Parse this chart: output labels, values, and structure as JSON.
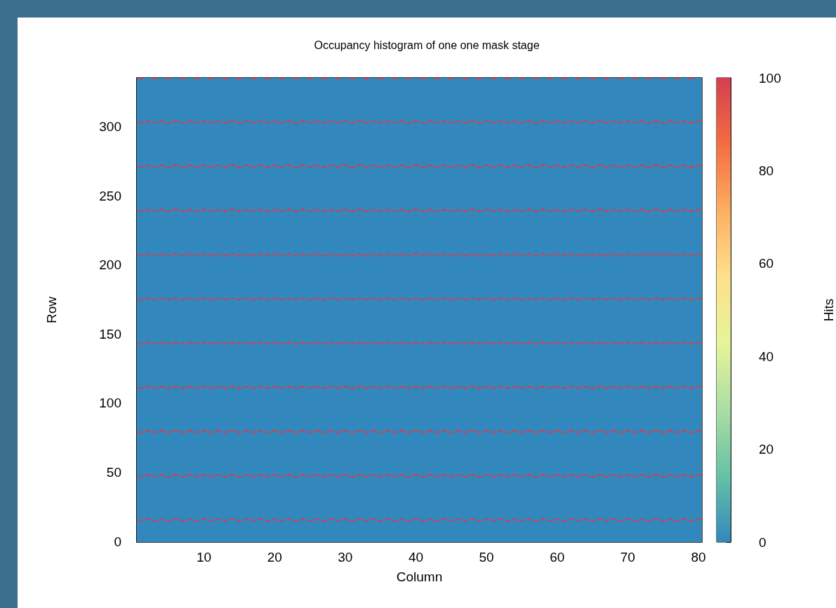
{
  "chart_data": {
    "type": "scatter",
    "title": "Occupancy histogram of one one mask stage",
    "xlabel": "Column",
    "ylabel": "Row",
    "clabel": "Hits",
    "marker": "diamond",
    "xlim": [
      0.5,
      80.5
    ],
    "xticks": [
      10,
      20,
      30,
      40,
      50,
      60,
      70,
      80
    ],
    "ylim": [
      -0.5,
      335.5
    ],
    "yticks": [
      0,
      50,
      100,
      150,
      200,
      250,
      300
    ],
    "clim": [
      0,
      100
    ],
    "cticks": [
      0,
      20,
      40,
      60,
      80,
      100
    ],
    "bands": [
      {
        "axis": "y",
        "from": -0.5,
        "to": 335.5,
        "color": "#3288bd"
      }
    ],
    "series": [
      {
        "x": [
          1,
          2,
          3,
          4,
          5,
          6,
          7,
          8,
          9,
          10,
          11,
          12,
          13,
          14,
          15,
          16,
          17,
          18,
          19,
          20,
          21,
          22,
          23,
          24,
          25,
          26,
          27,
          28,
          29,
          30,
          31,
          32,
          33,
          34,
          35,
          36,
          37,
          38,
          39,
          40,
          41,
          42,
          43,
          44,
          45,
          46,
          47,
          48,
          49,
          50,
          51,
          52,
          53,
          54,
          55,
          56,
          57,
          58,
          59,
          60,
          61,
          62,
          63,
          64,
          65,
          66,
          67,
          68,
          69,
          70,
          71,
          72,
          73,
          74,
          75,
          76,
          77,
          78,
          79,
          80
        ],
        "values": [
          15,
          16,
          15,
          16,
          15,
          16,
          15,
          16,
          15,
          16,
          15,
          16,
          15,
          16,
          15,
          16,
          15,
          16,
          15,
          16,
          15,
          16,
          15,
          16,
          15,
          16,
          15,
          16,
          15,
          16,
          15,
          16,
          15,
          16,
          15,
          16,
          15,
          16,
          15,
          16,
          15,
          16,
          15,
          16,
          15,
          16,
          15,
          16,
          15,
          16,
          15,
          16,
          15,
          16,
          15,
          16,
          15,
          16,
          15,
          16,
          15,
          16,
          15,
          16,
          15,
          16,
          15,
          16,
          15,
          16,
          15,
          16,
          15,
          16,
          15,
          16,
          15,
          16,
          15,
          16
        ],
        "cvalues": [
          100,
          100,
          100,
          100,
          100,
          100,
          100,
          100,
          100,
          100,
          100,
          100,
          100,
          100,
          100,
          100,
          100,
          100,
          100,
          100,
          100,
          100,
          100,
          100,
          100,
          100,
          100,
          100,
          100,
          100,
          100,
          100,
          100,
          100,
          100,
          100,
          100,
          100,
          100,
          100,
          100,
          100,
          100,
          100,
          100,
          100,
          100,
          100,
          100,
          100,
          100,
          100,
          100,
          100,
          100,
          100,
          100,
          100,
          100,
          100,
          100,
          100,
          100,
          100,
          100,
          100,
          100,
          100,
          100,
          100,
          100,
          100,
          100,
          100,
          100,
          100,
          100,
          100,
          100,
          100
        ]
      },
      {
        "x": [
          1,
          2,
          3,
          4,
          5,
          6,
          7,
          8,
          9,
          10,
          11,
          12,
          13,
          14,
          15,
          16,
          17,
          18,
          19,
          20,
          21,
          22,
          23,
          24,
          25,
          26,
          27,
          28,
          29,
          30,
          31,
          32,
          33,
          34,
          35,
          36,
          37,
          38,
          39,
          40,
          41,
          42,
          43,
          44,
          45,
          46,
          47,
          48,
          49,
          50,
          51,
          52,
          53,
          54,
          55,
          56,
          57,
          58,
          59,
          60,
          61,
          62,
          63,
          64,
          65,
          66,
          67,
          68,
          69,
          70,
          71,
          72,
          73,
          74,
          75,
          76,
          77,
          78,
          79,
          80
        ],
        "values": [
          47,
          48,
          47,
          48,
          47,
          48,
          47,
          48,
          47,
          48,
          47,
          48,
          47,
          48,
          47,
          48,
          47,
          48,
          47,
          48,
          47,
          48,
          47,
          48,
          47,
          48,
          47,
          48,
          47,
          48,
          47,
          48,
          47,
          48,
          47,
          48,
          47,
          48,
          47,
          48,
          47,
          48,
          47,
          48,
          47,
          48,
          47,
          48,
          47,
          48,
          47,
          48,
          47,
          48,
          47,
          48,
          47,
          48,
          47,
          48,
          47,
          48,
          47,
          48,
          47,
          48,
          47,
          48,
          47,
          48,
          47,
          48,
          47,
          48,
          47,
          48,
          47,
          48,
          47,
          48
        ],
        "cvalues": [
          100,
          100,
          100,
          100,
          100,
          100,
          100,
          100,
          100,
          100,
          100,
          100,
          100,
          100,
          100,
          100,
          100,
          100,
          100,
          100,
          100,
          100,
          100,
          100,
          100,
          100,
          100,
          100,
          100,
          100,
          100,
          100,
          100,
          100,
          100,
          100,
          100,
          100,
          100,
          100,
          100,
          100,
          100,
          100,
          100,
          100,
          100,
          100,
          100,
          100,
          100,
          100,
          100,
          100,
          100,
          100,
          100,
          100,
          100,
          100,
          100,
          100,
          100,
          100,
          100,
          100,
          100,
          100,
          100,
          100,
          100,
          100,
          100,
          100,
          100,
          100,
          100,
          100,
          100,
          100
        ]
      },
      {
        "x": [
          1,
          2,
          3,
          4,
          5,
          6,
          7,
          8,
          9,
          10,
          11,
          12,
          13,
          14,
          15,
          16,
          17,
          18,
          19,
          20,
          21,
          22,
          23,
          24,
          25,
          26,
          27,
          28,
          29,
          30,
          31,
          32,
          33,
          34,
          35,
          36,
          37,
          38,
          39,
          40,
          41,
          42,
          43,
          44,
          45,
          46,
          47,
          48,
          49,
          50,
          51,
          52,
          53,
          54,
          55,
          56,
          57,
          58,
          59,
          60,
          61,
          62,
          63,
          64,
          65,
          66,
          67,
          68,
          69,
          70,
          71,
          72,
          73,
          74,
          75,
          76,
          77,
          78,
          79,
          80
        ],
        "values": [
          79,
          80,
          79,
          80,
          79,
          80,
          79,
          80,
          79,
          80,
          79,
          80,
          79,
          80,
          79,
          80,
          79,
          80,
          79,
          80,
          79,
          80,
          79,
          80,
          79,
          80,
          79,
          80,
          79,
          80,
          79,
          80,
          79,
          80,
          79,
          80,
          79,
          80,
          79,
          80,
          79,
          80,
          79,
          80,
          79,
          80,
          79,
          80,
          79,
          80,
          79,
          80,
          79,
          80,
          79,
          80,
          79,
          80,
          79,
          80,
          79,
          80,
          79,
          80,
          79,
          80,
          79,
          80,
          79,
          80,
          79,
          80,
          79,
          80,
          79,
          80,
          79,
          80,
          79,
          80
        ],
        "cvalues": [
          100,
          100,
          100,
          100,
          100,
          100,
          100,
          100,
          100,
          100,
          100,
          100,
          100,
          100,
          100,
          100,
          100,
          100,
          100,
          100,
          100,
          100,
          100,
          100,
          100,
          100,
          100,
          100,
          100,
          100,
          100,
          100,
          100,
          100,
          100,
          100,
          100,
          100,
          100,
          100,
          100,
          100,
          100,
          100,
          100,
          100,
          100,
          100,
          100,
          100,
          100,
          100,
          100,
          100,
          100,
          100,
          100,
          100,
          100,
          100,
          100,
          100,
          100,
          100,
          100,
          100,
          100,
          100,
          100,
          100,
          100,
          100,
          100,
          100,
          100,
          100,
          100,
          100,
          100,
          100
        ]
      },
      {
        "x": [
          1,
          2,
          3,
          4,
          5,
          6,
          7,
          8,
          9,
          10,
          11,
          12,
          13,
          14,
          15,
          16,
          17,
          18,
          19,
          20,
          21,
          22,
          23,
          24,
          25,
          26,
          27,
          28,
          29,
          30,
          31,
          32,
          33,
          34,
          35,
          36,
          37,
          38,
          39,
          40,
          41,
          42,
          43,
          44,
          45,
          46,
          47,
          48,
          49,
          50,
          51,
          52,
          53,
          54,
          55,
          56,
          57,
          58,
          59,
          60,
          61,
          62,
          63,
          64,
          65,
          66,
          67,
          68,
          69,
          70,
          71,
          72,
          73,
          74,
          75,
          76,
          77,
          78,
          79,
          80
        ],
        "values": [
          111,
          112,
          111,
          112,
          111,
          112,
          111,
          112,
          111,
          112,
          111,
          112,
          111,
          112,
          111,
          112,
          111,
          112,
          111,
          112,
          111,
          112,
          111,
          112,
          111,
          112,
          111,
          112,
          111,
          112,
          111,
          112,
          111,
          112,
          111,
          112,
          111,
          112,
          111,
          112,
          111,
          112,
          111,
          112,
          111,
          112,
          111,
          112,
          111,
          112,
          111,
          112,
          111,
          112,
          111,
          112,
          111,
          112,
          111,
          112,
          111,
          112,
          111,
          112,
          111,
          112,
          111,
          112,
          111,
          112,
          111,
          112,
          111,
          112,
          111,
          112,
          111,
          112,
          111,
          112
        ],
        "cvalues": [
          100,
          100,
          100,
          100,
          100,
          100,
          100,
          100,
          100,
          100,
          100,
          100,
          100,
          100,
          100,
          100,
          100,
          100,
          100,
          100,
          100,
          100,
          100,
          100,
          100,
          100,
          100,
          100,
          100,
          100,
          100,
          100,
          100,
          100,
          100,
          100,
          100,
          100,
          100,
          100,
          100,
          100,
          100,
          100,
          100,
          100,
          100,
          100,
          100,
          100,
          100,
          100,
          100,
          100,
          100,
          100,
          100,
          100,
          100,
          100,
          100,
          100,
          100,
          100,
          100,
          100,
          100,
          100,
          100,
          100,
          100,
          100,
          100,
          100,
          100,
          100,
          100,
          100,
          100,
          100
        ]
      },
      {
        "x": [
          1,
          2,
          3,
          4,
          5,
          6,
          7,
          8,
          9,
          10,
          11,
          12,
          13,
          14,
          15,
          16,
          17,
          18,
          19,
          20,
          21,
          22,
          23,
          24,
          25,
          26,
          27,
          28,
          29,
          30,
          31,
          32,
          33,
          34,
          35,
          36,
          37,
          38,
          39,
          40,
          41,
          42,
          43,
          44,
          45,
          46,
          47,
          48,
          49,
          50,
          51,
          52,
          53,
          54,
          55,
          56,
          57,
          58,
          59,
          60,
          61,
          62,
          63,
          64,
          65,
          66,
          67,
          68,
          69,
          70,
          71,
          72,
          73,
          74,
          75,
          76,
          77,
          78,
          79,
          80
        ],
        "values": [
          143,
          144,
          143,
          144,
          143,
          144,
          143,
          144,
          143,
          144,
          143,
          144,
          143,
          144,
          143,
          144,
          143,
          144,
          143,
          144,
          143,
          144,
          143,
          144,
          143,
          144,
          143,
          144,
          143,
          144,
          143,
          144,
          143,
          144,
          143,
          144,
          143,
          144,
          143,
          144,
          143,
          144,
          143,
          144,
          143,
          144,
          143,
          144,
          143,
          144,
          143,
          144,
          143,
          144,
          143,
          144,
          143,
          144,
          143,
          144,
          143,
          144,
          143,
          144,
          143,
          144,
          143,
          144,
          143,
          144,
          143,
          144,
          143,
          144,
          143,
          144,
          143,
          144,
          143,
          144
        ],
        "cvalues": [
          100,
          100,
          100,
          100,
          100,
          100,
          100,
          100,
          100,
          100,
          100,
          100,
          100,
          100,
          100,
          100,
          100,
          100,
          100,
          100,
          100,
          100,
          100,
          100,
          100,
          100,
          100,
          100,
          100,
          100,
          100,
          100,
          100,
          100,
          100,
          100,
          100,
          100,
          100,
          100,
          100,
          100,
          100,
          100,
          100,
          100,
          100,
          100,
          100,
          100,
          100,
          100,
          100,
          100,
          100,
          100,
          100,
          100,
          100,
          100,
          100,
          100,
          100,
          100,
          100,
          100,
          100,
          100,
          100,
          100,
          100,
          100,
          100,
          100,
          100,
          100,
          100,
          100,
          100,
          100
        ]
      },
      {
        "x": [
          1,
          2,
          3,
          4,
          5,
          6,
          7,
          8,
          9,
          10,
          11,
          12,
          13,
          14,
          15,
          16,
          17,
          18,
          19,
          20,
          21,
          22,
          23,
          24,
          25,
          26,
          27,
          28,
          29,
          30,
          31,
          32,
          33,
          34,
          35,
          36,
          37,
          38,
          39,
          40,
          41,
          42,
          43,
          44,
          45,
          46,
          47,
          48,
          49,
          50,
          51,
          52,
          53,
          54,
          55,
          56,
          57,
          58,
          59,
          60,
          61,
          62,
          63,
          64,
          65,
          66,
          67,
          68,
          69,
          70,
          71,
          72,
          73,
          74,
          75,
          76,
          77,
          78,
          79,
          80
        ],
        "values": [
          175,
          176,
          175,
          176,
          175,
          176,
          175,
          176,
          175,
          176,
          175,
          176,
          175,
          176,
          175,
          176,
          175,
          176,
          175,
          176,
          175,
          176,
          175,
          176,
          175,
          176,
          175,
          176,
          175,
          176,
          175,
          176,
          175,
          176,
          175,
          176,
          175,
          176,
          175,
          176,
          175,
          176,
          175,
          176,
          175,
          176,
          175,
          176,
          175,
          176,
          175,
          176,
          175,
          176,
          175,
          176,
          175,
          176,
          175,
          176,
          175,
          176,
          175,
          176,
          175,
          176,
          175,
          176,
          175,
          176,
          175,
          176,
          175,
          176,
          175,
          176,
          175,
          176,
          175,
          176
        ],
        "cvalues": [
          100,
          100,
          100,
          100,
          100,
          100,
          100,
          100,
          100,
          100,
          100,
          100,
          100,
          100,
          100,
          100,
          100,
          100,
          100,
          100,
          100,
          100,
          100,
          100,
          100,
          100,
          100,
          100,
          100,
          100,
          100,
          100,
          100,
          100,
          100,
          100,
          100,
          100,
          100,
          100,
          100,
          100,
          100,
          100,
          100,
          100,
          100,
          100,
          100,
          100,
          100,
          100,
          100,
          100,
          100,
          100,
          100,
          100,
          100,
          100,
          100,
          100,
          100,
          100,
          100,
          100,
          100,
          100,
          100,
          100,
          100,
          100,
          100,
          100,
          100,
          100,
          100,
          100,
          100,
          100
        ]
      },
      {
        "x": [
          1,
          2,
          3,
          4,
          5,
          6,
          7,
          8,
          9,
          10,
          11,
          12,
          13,
          14,
          15,
          16,
          17,
          18,
          19,
          20,
          21,
          22,
          23,
          24,
          25,
          26,
          27,
          28,
          29,
          30,
          31,
          32,
          33,
          34,
          35,
          36,
          37,
          38,
          39,
          40,
          41,
          42,
          43,
          44,
          45,
          46,
          47,
          48,
          49,
          50,
          51,
          52,
          53,
          54,
          55,
          56,
          57,
          58,
          59,
          60,
          61,
          62,
          63,
          64,
          65,
          66,
          67,
          68,
          69,
          70,
          71,
          72,
          73,
          74,
          75,
          76,
          77,
          78,
          79,
          80
        ],
        "values": [
          207,
          208,
          207,
          208,
          207,
          208,
          207,
          208,
          207,
          208,
          207,
          208,
          207,
          208,
          207,
          208,
          207,
          208,
          207,
          208,
          207,
          208,
          207,
          208,
          207,
          208,
          207,
          208,
          207,
          208,
          207,
          208,
          207,
          208,
          207,
          208,
          207,
          208,
          207,
          208,
          207,
          208,
          207,
          208,
          207,
          208,
          207,
          208,
          207,
          208,
          207,
          208,
          207,
          208,
          207,
          208,
          207,
          208,
          207,
          208,
          207,
          208,
          207,
          208,
          207,
          208,
          207,
          208,
          207,
          208,
          207,
          208,
          207,
          208,
          207,
          208,
          207,
          208,
          207,
          208
        ],
        "cvalues": [
          100,
          100,
          100,
          100,
          100,
          100,
          100,
          100,
          100,
          100,
          100,
          100,
          100,
          100,
          100,
          100,
          100,
          100,
          100,
          100,
          100,
          100,
          100,
          100,
          100,
          100,
          100,
          100,
          100,
          100,
          100,
          100,
          100,
          100,
          100,
          100,
          100,
          100,
          100,
          100,
          100,
          100,
          100,
          100,
          100,
          100,
          100,
          100,
          100,
          100,
          100,
          100,
          100,
          100,
          100,
          100,
          100,
          100,
          100,
          100,
          100,
          100,
          100,
          100,
          100,
          100,
          100,
          100,
          100,
          100,
          100,
          100,
          100,
          100,
          100,
          100,
          100,
          100,
          100,
          100
        ]
      },
      {
        "x": [
          1,
          2,
          3,
          4,
          5,
          6,
          7,
          8,
          9,
          10,
          11,
          12,
          13,
          14,
          15,
          16,
          17,
          18,
          19,
          20,
          21,
          22,
          23,
          24,
          25,
          26,
          27,
          28,
          29,
          30,
          31,
          32,
          33,
          34,
          35,
          36,
          37,
          38,
          39,
          40,
          41,
          42,
          43,
          44,
          45,
          46,
          47,
          48,
          49,
          50,
          51,
          52,
          53,
          54,
          55,
          56,
          57,
          58,
          59,
          60,
          61,
          62,
          63,
          64,
          65,
          66,
          67,
          68,
          69,
          70,
          71,
          72,
          73,
          74,
          75,
          76,
          77,
          78,
          79,
          80
        ],
        "values": [
          239,
          240,
          239,
          240,
          239,
          240,
          239,
          240,
          239,
          240,
          239,
          240,
          239,
          240,
          239,
          240,
          239,
          240,
          239,
          240,
          239,
          240,
          239,
          240,
          239,
          240,
          239,
          240,
          239,
          240,
          239,
          240,
          239,
          240,
          239,
          240,
          239,
          240,
          239,
          240,
          239,
          240,
          239,
          240,
          239,
          240,
          239,
          240,
          239,
          240,
          239,
          240,
          239,
          240,
          239,
          240,
          239,
          240,
          239,
          240,
          239,
          240,
          239,
          240,
          239,
          240,
          239,
          240,
          239,
          240,
          239,
          240,
          239,
          240,
          239,
          240,
          239,
          240,
          239,
          240
        ],
        "cvalues": [
          100,
          100,
          100,
          100,
          100,
          100,
          100,
          100,
          100,
          100,
          100,
          100,
          100,
          100,
          100,
          100,
          100,
          100,
          100,
          100,
          100,
          100,
          100,
          100,
          100,
          100,
          100,
          100,
          100,
          100,
          100,
          100,
          100,
          100,
          100,
          100,
          100,
          100,
          100,
          100,
          100,
          100,
          100,
          100,
          100,
          100,
          100,
          100,
          100,
          100,
          100,
          100,
          100,
          100,
          100,
          100,
          100,
          100,
          100,
          100,
          100,
          100,
          100,
          100,
          100,
          100,
          100,
          100,
          100,
          100,
          100,
          100,
          100,
          100,
          100,
          100,
          100,
          100,
          100,
          100
        ]
      },
      {
        "x": [
          1,
          2,
          3,
          4,
          5,
          6,
          7,
          8,
          9,
          10,
          11,
          12,
          13,
          14,
          15,
          16,
          17,
          18,
          19,
          20,
          21,
          22,
          23,
          24,
          25,
          26,
          27,
          28,
          29,
          30,
          31,
          32,
          33,
          34,
          35,
          36,
          37,
          38,
          39,
          40,
          41,
          42,
          43,
          44,
          45,
          46,
          47,
          48,
          49,
          50,
          51,
          52,
          53,
          54,
          55,
          56,
          57,
          58,
          59,
          60,
          61,
          62,
          63,
          64,
          65,
          66,
          67,
          68,
          69,
          70,
          71,
          72,
          73,
          74,
          75,
          76,
          77,
          78,
          79,
          80
        ],
        "values": [
          271,
          272,
          271,
          272,
          271,
          272,
          271,
          272,
          271,
          272,
          271,
          272,
          271,
          272,
          271,
          272,
          271,
          272,
          271,
          272,
          271,
          272,
          271,
          272,
          271,
          272,
          271,
          272,
          271,
          272,
          271,
          272,
          271,
          272,
          271,
          272,
          271,
          272,
          271,
          272,
          271,
          272,
          271,
          272,
          271,
          272,
          271,
          272,
          271,
          272,
          271,
          272,
          271,
          272,
          271,
          272,
          271,
          272,
          271,
          272,
          271,
          272,
          271,
          272,
          271,
          272,
          271,
          272,
          271,
          272,
          271,
          272,
          271,
          272,
          271,
          272,
          271,
          272,
          271,
          272
        ],
        "cvalues": [
          100,
          100,
          100,
          100,
          100,
          100,
          100,
          100,
          100,
          100,
          100,
          100,
          100,
          100,
          100,
          100,
          100,
          100,
          100,
          100,
          100,
          100,
          100,
          100,
          100,
          100,
          100,
          100,
          100,
          100,
          100,
          100,
          100,
          100,
          100,
          100,
          100,
          100,
          100,
          100,
          100,
          100,
          100,
          100,
          100,
          100,
          100,
          100,
          100,
          100,
          100,
          100,
          100,
          100,
          100,
          100,
          100,
          100,
          100,
          100,
          100,
          100,
          100,
          100,
          100,
          100,
          100,
          100,
          100,
          100,
          100,
          100,
          100,
          100,
          100,
          100,
          100,
          100,
          100,
          100
        ]
      },
      {
        "x": [
          1,
          2,
          3,
          4,
          5,
          6,
          7,
          8,
          9,
          10,
          11,
          12,
          13,
          14,
          15,
          16,
          17,
          18,
          19,
          20,
          21,
          22,
          23,
          24,
          25,
          26,
          27,
          28,
          29,
          30,
          31,
          32,
          33,
          34,
          35,
          36,
          37,
          38,
          39,
          40,
          41,
          42,
          43,
          44,
          45,
          46,
          47,
          48,
          49,
          50,
          51,
          52,
          53,
          54,
          55,
          56,
          57,
          58,
          59,
          60,
          61,
          62,
          63,
          64,
          65,
          66,
          67,
          68,
          69,
          70,
          71,
          72,
          73,
          74,
          75,
          76,
          77,
          78,
          79,
          80
        ],
        "values": [
          303,
          304,
          303,
          304,
          303,
          304,
          303,
          304,
          303,
          304,
          303,
          304,
          303,
          304,
          303,
          304,
          303,
          304,
          303,
          304,
          303,
          304,
          303,
          304,
          303,
          304,
          303,
          304,
          303,
          304,
          303,
          304,
          303,
          304,
          303,
          304,
          303,
          304,
          303,
          304,
          303,
          304,
          303,
          304,
          303,
          304,
          303,
          304,
          303,
          304,
          303,
          304,
          303,
          304,
          303,
          304,
          303,
          304,
          303,
          304,
          303,
          304,
          303,
          304,
          303,
          304,
          303,
          304,
          303,
          304,
          303,
          304,
          303,
          304,
          303,
          304,
          303,
          304,
          303,
          304
        ],
        "cvalues": [
          100,
          100,
          100,
          100,
          100,
          100,
          100,
          100,
          100,
          100,
          100,
          100,
          100,
          100,
          100,
          100,
          100,
          100,
          100,
          100,
          100,
          100,
          100,
          100,
          100,
          100,
          100,
          100,
          100,
          100,
          100,
          100,
          100,
          100,
          100,
          100,
          100,
          100,
          100,
          100,
          100,
          100,
          100,
          100,
          100,
          100,
          100,
          100,
          100,
          100,
          100,
          100,
          100,
          100,
          100,
          100,
          100,
          100,
          100,
          100,
          100,
          100,
          100,
          100,
          100,
          100,
          100,
          100,
          100,
          100,
          100,
          100,
          100,
          100,
          100,
          100,
          100,
          100,
          100,
          100
        ]
      },
      {
        "x": [
          1,
          3,
          5,
          7,
          9,
          11,
          13,
          15,
          17,
          19,
          21,
          23,
          25,
          27,
          29,
          31,
          33,
          35,
          37,
          39,
          41,
          43,
          45,
          47,
          49,
          51,
          53,
          55,
          57,
          59,
          61,
          63,
          65,
          67,
          69,
          71,
          73,
          75,
          77,
          79
        ],
        "values": [
          335,
          335,
          335,
          335,
          335,
          335,
          335,
          335,
          335,
          335,
          335,
          335,
          335,
          335,
          335,
          335,
          335,
          335,
          335,
          335,
          335,
          335,
          335,
          335,
          335,
          335,
          335,
          335,
          335,
          335,
          335,
          335,
          335,
          335,
          335,
          335,
          335,
          335,
          335,
          335
        ],
        "cvalues": [
          100,
          100,
          100,
          100,
          100,
          100,
          100,
          100,
          100,
          100,
          100,
          100,
          100,
          100,
          100,
          100,
          100,
          100,
          100,
          100,
          100,
          100,
          100,
          100,
          100,
          100,
          100,
          100,
          100,
          100,
          100,
          100,
          100,
          100,
          100,
          100,
          100,
          100,
          100,
          100
        ]
      }
    ]
  }
}
